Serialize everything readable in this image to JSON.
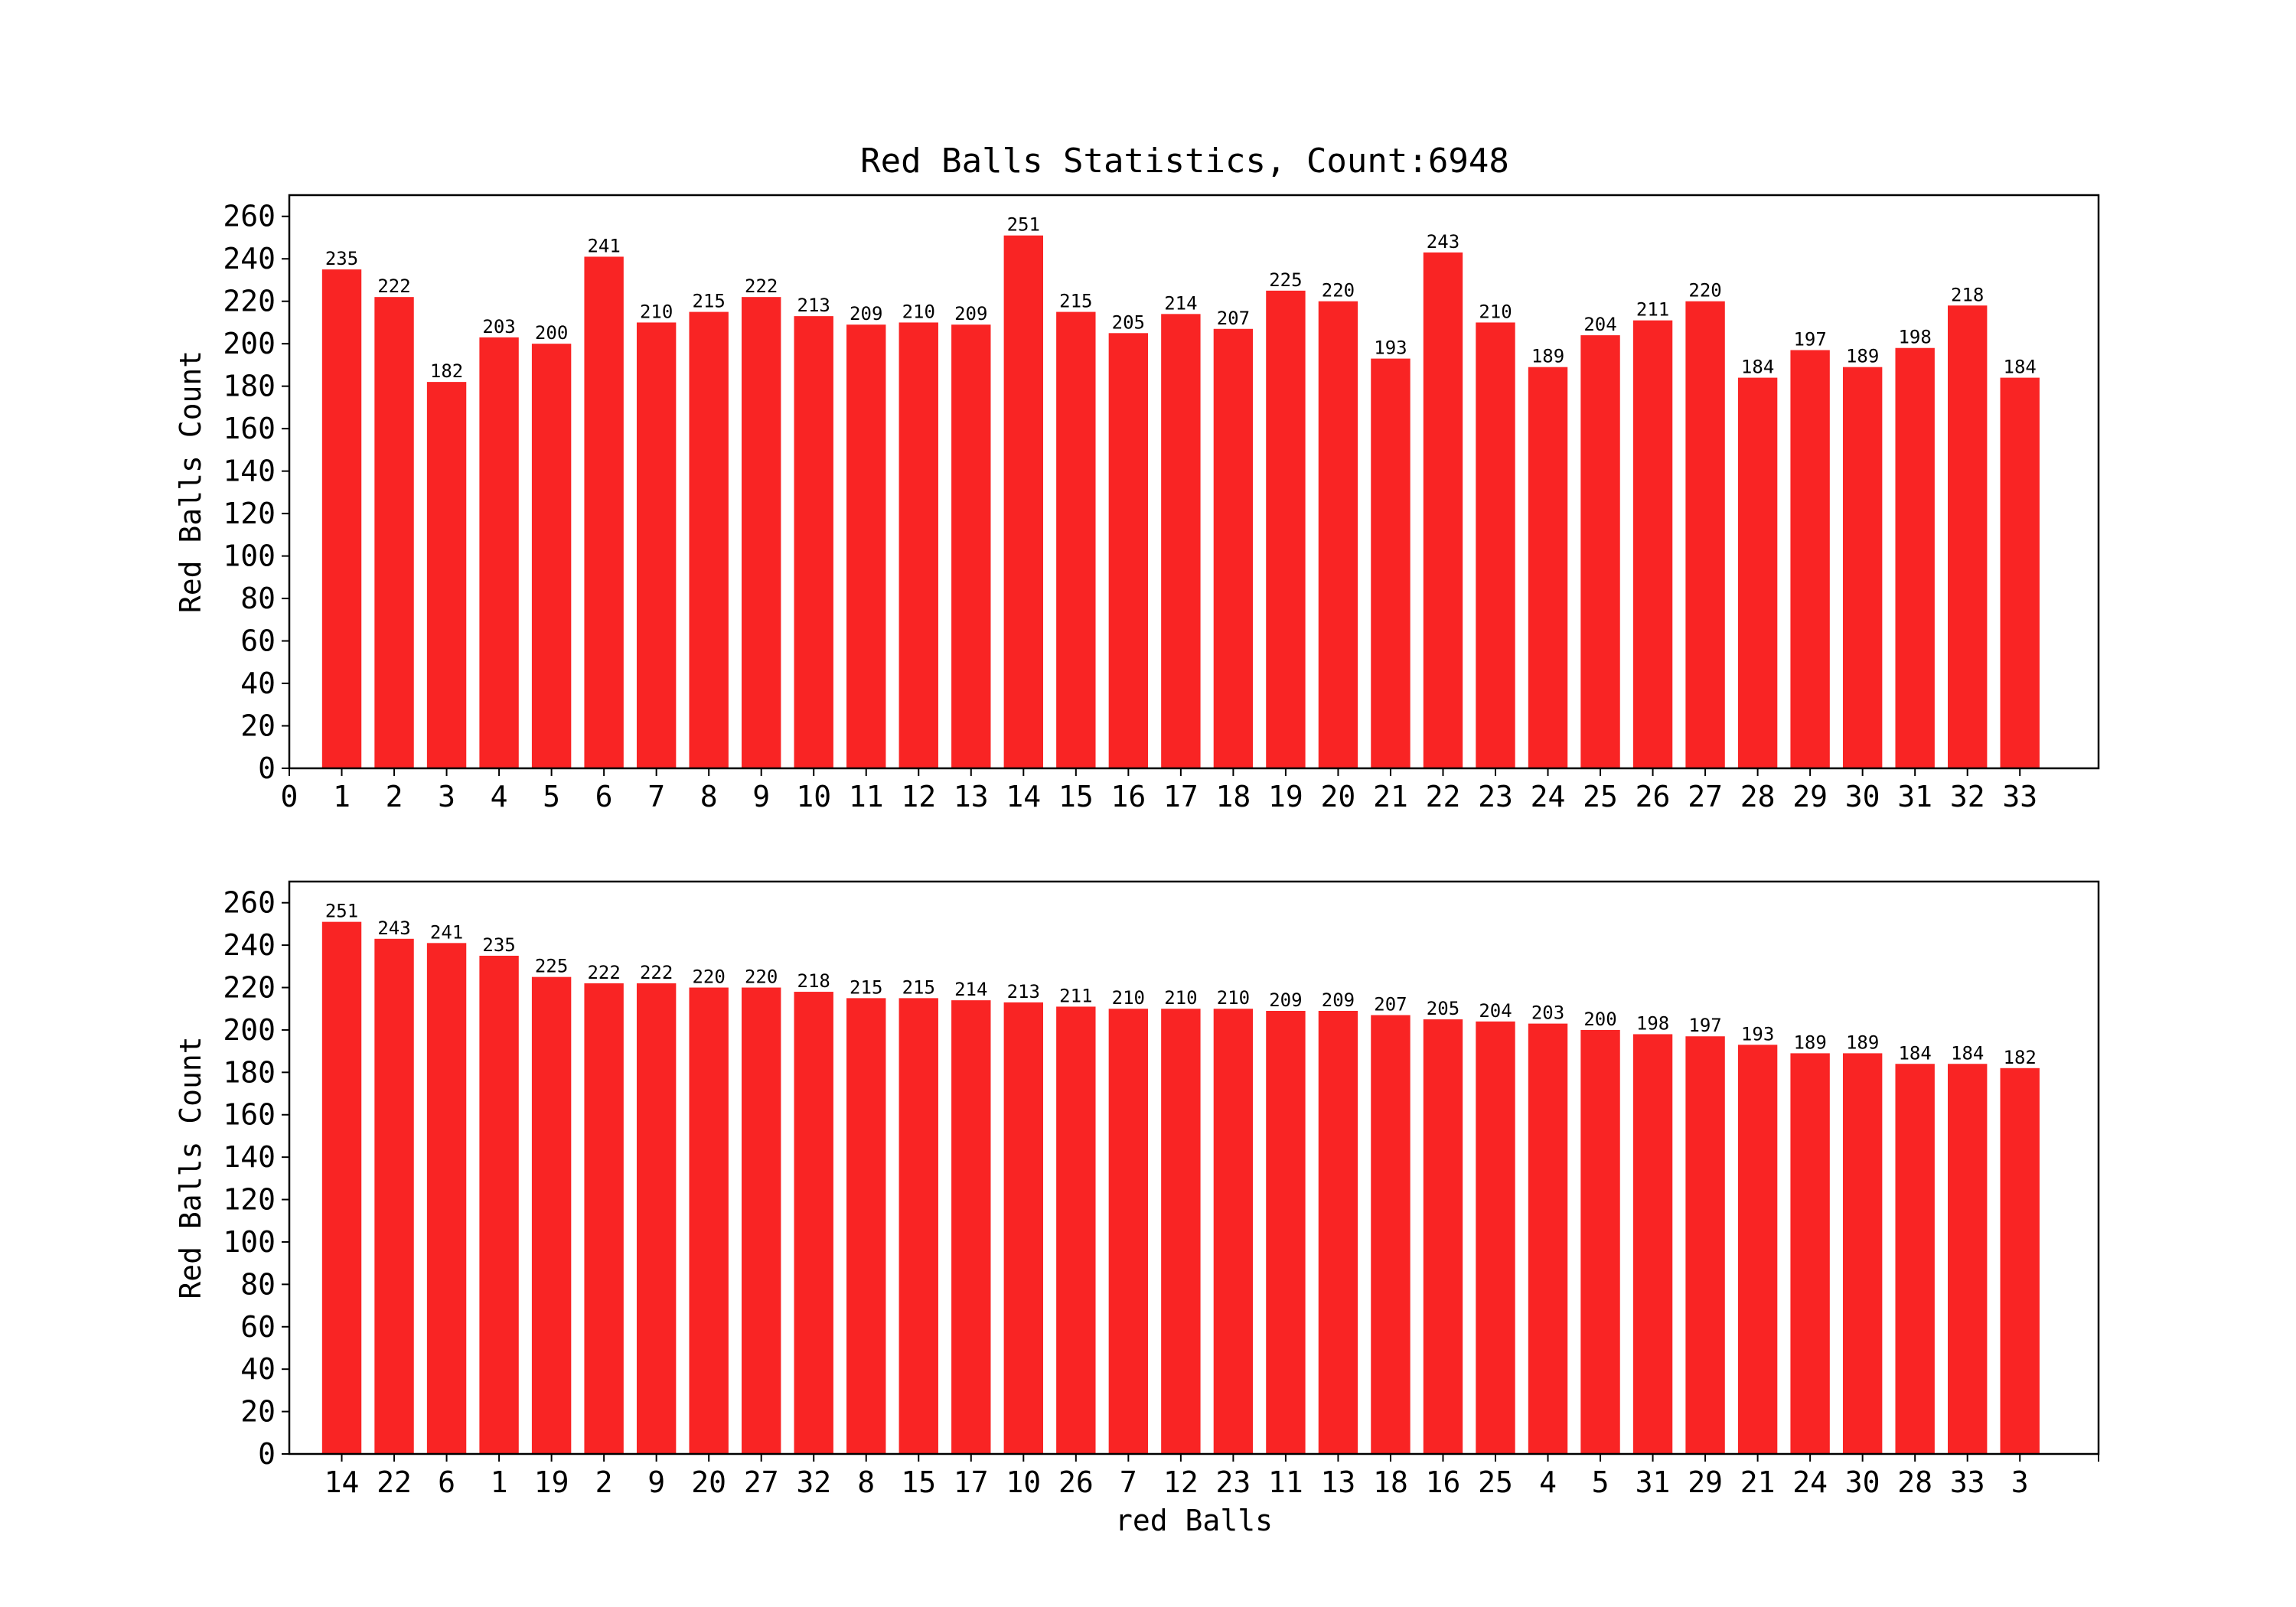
{
  "figure": {
    "title": "Red Balls Statistics, Count:6948",
    "bar_color": "#f92424",
    "axes_color": "#000000",
    "background": "#ffffff"
  },
  "chart_data": [
    {
      "type": "bar",
      "ylabel": "Red Balls Count",
      "xlabel": "",
      "ylim": [
        0,
        270
      ],
      "yticks": [
        0,
        20,
        40,
        60,
        80,
        100,
        120,
        140,
        160,
        180,
        200,
        220,
        240,
        260
      ],
      "xlim": [
        0,
        34.5
      ],
      "xtick_positions": [
        0,
        1,
        2,
        3,
        4,
        5,
        6,
        7,
        8,
        9,
        10,
        11,
        12,
        13,
        14,
        15,
        16,
        17,
        18,
        19,
        20,
        21,
        22,
        23,
        24,
        25,
        26,
        27,
        28,
        29,
        30,
        31,
        32,
        33
      ],
      "xtick_labels": [
        "0",
        "1",
        "2",
        "3",
        "4",
        "5",
        "6",
        "7",
        "8",
        "9",
        "10",
        "11",
        "12",
        "13",
        "14",
        "15",
        "16",
        "17",
        "18",
        "19",
        "20",
        "21",
        "22",
        "23",
        "24",
        "25",
        "26",
        "27",
        "28",
        "29",
        "30",
        "31",
        "32",
        "33"
      ],
      "categories": [
        "1",
        "2",
        "3",
        "4",
        "5",
        "6",
        "7",
        "8",
        "9",
        "10",
        "11",
        "12",
        "13",
        "14",
        "15",
        "16",
        "17",
        "18",
        "19",
        "20",
        "21",
        "22",
        "23",
        "24",
        "25",
        "26",
        "27",
        "28",
        "29",
        "30",
        "31",
        "32",
        "33"
      ],
      "x": [
        1,
        2,
        3,
        4,
        5,
        6,
        7,
        8,
        9,
        10,
        11,
        12,
        13,
        14,
        15,
        16,
        17,
        18,
        19,
        20,
        21,
        22,
        23,
        24,
        25,
        26,
        27,
        28,
        29,
        30,
        31,
        32,
        33
      ],
      "values": [
        235,
        222,
        182,
        203,
        200,
        241,
        210,
        215,
        222,
        213,
        209,
        210,
        209,
        251,
        215,
        205,
        214,
        207,
        225,
        220,
        193,
        243,
        210,
        189,
        204,
        211,
        220,
        184,
        197,
        189,
        198,
        218,
        184
      ],
      "bar_width": 0.75,
      "data_labels": true,
      "grid": false
    },
    {
      "type": "bar",
      "ylabel": "Red Balls Count",
      "xlabel": "red Balls",
      "ylim": [
        0,
        270
      ],
      "yticks": [
        0,
        20,
        40,
        60,
        80,
        100,
        120,
        140,
        160,
        180,
        200,
        220,
        240,
        260
      ],
      "xlim": [
        0,
        34.5
      ],
      "xtick_positions": [
        1,
        2,
        3,
        4,
        5,
        6,
        7,
        8,
        9,
        10,
        11,
        12,
        13,
        14,
        15,
        16,
        17,
        18,
        19,
        20,
        21,
        22,
        23,
        24,
        25,
        26,
        27,
        28,
        29,
        30,
        31,
        32,
        33,
        34.5
      ],
      "xtick_labels": [
        "14",
        "22",
        "6",
        "1",
        "19",
        "2",
        "9",
        "20",
        "27",
        "32",
        "8",
        "15",
        "17",
        "10",
        "26",
        "7",
        "12",
        "23",
        "11",
        "13",
        "18",
        "16",
        "25",
        "4",
        "5",
        "31",
        "29",
        "21",
        "24",
        "30",
        "28",
        "33",
        "3",
        ""
      ],
      "categories": [
        "14",
        "22",
        "6",
        "1",
        "19",
        "2",
        "9",
        "20",
        "27",
        "32",
        "8",
        "15",
        "17",
        "10",
        "26",
        "7",
        "12",
        "23",
        "11",
        "13",
        "18",
        "16",
        "25",
        "4",
        "5",
        "31",
        "29",
        "21",
        "24",
        "30",
        "28",
        "33",
        "3"
      ],
      "x": [
        1,
        2,
        3,
        4,
        5,
        6,
        7,
        8,
        9,
        10,
        11,
        12,
        13,
        14,
        15,
        16,
        17,
        18,
        19,
        20,
        21,
        22,
        23,
        24,
        25,
        26,
        27,
        28,
        29,
        30,
        31,
        32,
        33
      ],
      "values": [
        251,
        243,
        241,
        235,
        225,
        222,
        222,
        220,
        220,
        218,
        215,
        215,
        214,
        213,
        211,
        210,
        210,
        210,
        209,
        209,
        207,
        205,
        204,
        203,
        200,
        198,
        197,
        193,
        189,
        189,
        184,
        184,
        182
      ],
      "bar_width": 0.75,
      "data_labels": true,
      "grid": false
    }
  ]
}
